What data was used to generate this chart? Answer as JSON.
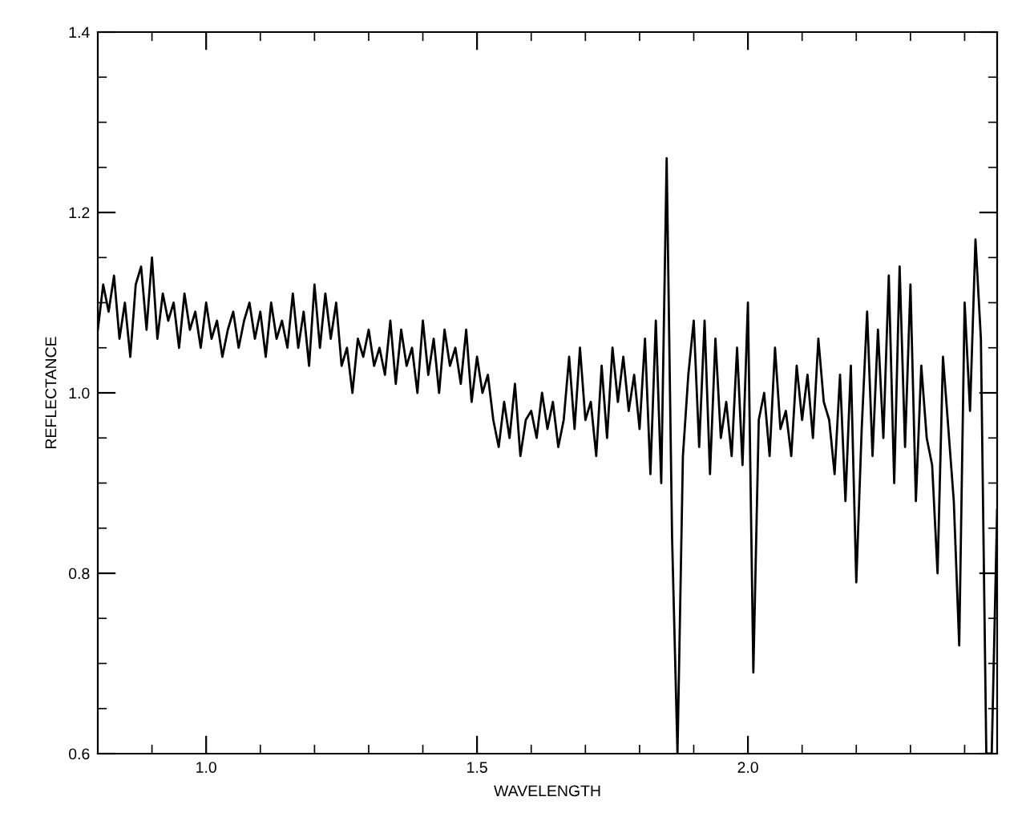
{
  "chart_data": {
    "type": "line",
    "xlabel": "WAVELENGTH",
    "ylabel": "REFLECTANCE",
    "xlim": [
      0.8,
      2.46
    ],
    "ylim": [
      0.6,
      1.4
    ],
    "xticks": [
      {
        "value": 1.0,
        "label": "1.0"
      },
      {
        "value": 1.5,
        "label": "1.5"
      },
      {
        "value": 2.0,
        "label": "2.0"
      }
    ],
    "yticks": [
      {
        "value": 0.6,
        "label": "0.6"
      },
      {
        "value": 0.8,
        "label": "0.8"
      },
      {
        "value": 1.0,
        "label": "1.0"
      },
      {
        "value": 1.2,
        "label": "1.2"
      },
      {
        "value": 1.4,
        "label": "1.4"
      }
    ],
    "grid": false,
    "legend": false,
    "marker": "none",
    "line_style": "solid",
    "series": [
      {
        "color": "#000000",
        "x": [
          0.8,
          0.81,
          0.82,
          0.83,
          0.84,
          0.85,
          0.86,
          0.87,
          0.88,
          0.89,
          0.9,
          0.91,
          0.92,
          0.93,
          0.94,
          0.95,
          0.96,
          0.97,
          0.98,
          0.99,
          1.0,
          1.01,
          1.02,
          1.03,
          1.04,
          1.05,
          1.06,
          1.07,
          1.08,
          1.09,
          1.1,
          1.11,
          1.12,
          1.13,
          1.14,
          1.15,
          1.16,
          1.17,
          1.18,
          1.19,
          1.2,
          1.21,
          1.22,
          1.23,
          1.24,
          1.25,
          1.26,
          1.27,
          1.28,
          1.29,
          1.3,
          1.31,
          1.32,
          1.33,
          1.34,
          1.35,
          1.36,
          1.37,
          1.38,
          1.39,
          1.4,
          1.41,
          1.42,
          1.43,
          1.44,
          1.45,
          1.46,
          1.47,
          1.48,
          1.49,
          1.5,
          1.51,
          1.52,
          1.53,
          1.54,
          1.55,
          1.56,
          1.57,
          1.58,
          1.59,
          1.6,
          1.61,
          1.62,
          1.63,
          1.64,
          1.65,
          1.66,
          1.67,
          1.68,
          1.69,
          1.7,
          1.71,
          1.72,
          1.73,
          1.74,
          1.75,
          1.76,
          1.77,
          1.78,
          1.79,
          1.8,
          1.81,
          1.82,
          1.83,
          1.84,
          1.85,
          1.86,
          1.87,
          1.88,
          1.89,
          1.9,
          1.91,
          1.92,
          1.93,
          1.94,
          1.95,
          1.96,
          1.97,
          1.98,
          1.99,
          2.0,
          2.01,
          2.02,
          2.03,
          2.04,
          2.05,
          2.06,
          2.07,
          2.08,
          2.09,
          2.1,
          2.11,
          2.12,
          2.13,
          2.14,
          2.15,
          2.16,
          2.17,
          2.18,
          2.19,
          2.2,
          2.21,
          2.22,
          2.23,
          2.24,
          2.25,
          2.26,
          2.27,
          2.28,
          2.29,
          2.3,
          2.31,
          2.32,
          2.33,
          2.34,
          2.35,
          2.36,
          2.37,
          2.38,
          2.39,
          2.4,
          2.41,
          2.42,
          2.43,
          2.44,
          2.45,
          2.46
        ],
        "values": [
          1.07,
          1.12,
          1.09,
          1.13,
          1.06,
          1.1,
          1.04,
          1.12,
          1.14,
          1.07,
          1.15,
          1.06,
          1.11,
          1.08,
          1.1,
          1.05,
          1.11,
          1.07,
          1.09,
          1.05,
          1.1,
          1.06,
          1.08,
          1.04,
          1.07,
          1.09,
          1.05,
          1.08,
          1.1,
          1.06,
          1.09,
          1.04,
          1.1,
          1.06,
          1.08,
          1.05,
          1.11,
          1.05,
          1.09,
          1.03,
          1.12,
          1.05,
          1.11,
          1.06,
          1.1,
          1.03,
          1.05,
          1.0,
          1.06,
          1.04,
          1.07,
          1.03,
          1.05,
          1.02,
          1.08,
          1.01,
          1.07,
          1.03,
          1.05,
          1.0,
          1.08,
          1.02,
          1.06,
          1.0,
          1.07,
          1.03,
          1.05,
          1.01,
          1.07,
          0.99,
          1.04,
          1.0,
          1.02,
          0.97,
          0.94,
          0.99,
          0.95,
          1.01,
          0.93,
          0.97,
          0.98,
          0.95,
          1.0,
          0.96,
          0.99,
          0.94,
          0.97,
          1.04,
          0.96,
          1.05,
          0.97,
          0.99,
          0.93,
          1.03,
          0.95,
          1.05,
          0.99,
          1.04,
          0.98,
          1.02,
          0.96,
          1.06,
          0.91,
          1.08,
          0.9,
          1.26,
          0.84,
          0.6,
          0.93,
          1.02,
          1.08,
          0.94,
          1.08,
          0.91,
          1.06,
          0.95,
          0.99,
          0.93,
          1.05,
          0.92,
          1.1,
          0.69,
          0.97,
          1.0,
          0.93,
          1.05,
          0.96,
          0.98,
          0.93,
          1.03,
          0.97,
          1.02,
          0.95,
          1.06,
          0.99,
          0.97,
          0.91,
          1.02,
          0.88,
          1.03,
          0.79,
          0.96,
          1.09,
          0.93,
          1.07,
          0.95,
          1.13,
          0.9,
          1.14,
          0.94,
          1.12,
          0.88,
          1.03,
          0.95,
          0.92,
          0.8,
          1.04,
          0.96,
          0.88,
          0.72,
          1.1,
          0.98,
          1.17,
          1.06,
          0.6,
          0.6,
          0.87
        ]
      }
    ]
  }
}
